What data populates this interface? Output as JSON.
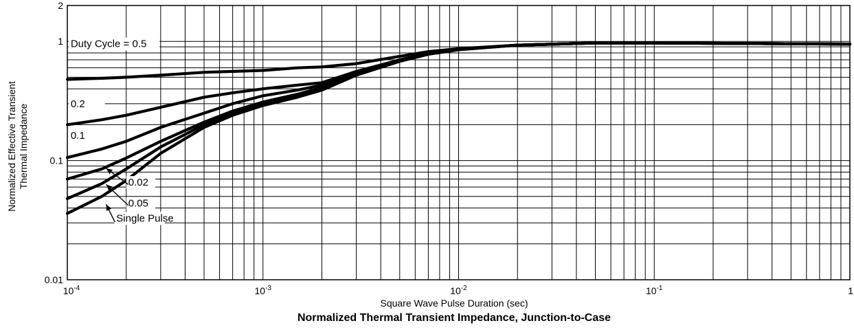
{
  "chart_data": {
    "type": "line",
    "title": "Normalized Thermal Transient Impedance, Junction-to-Case",
    "xlabel": "Square Wave Pulse Duration (sec)",
    "ylabel_lines": [
      "Normalized Effective Transient",
      "Thermal Impedance"
    ],
    "x_scale": "log",
    "y_scale": "log",
    "xlim": [
      0.0001,
      1
    ],
    "ylim": [
      0.01,
      2
    ],
    "grid": true,
    "x_ticks": [
      {
        "value": 0.0001,
        "base": "10",
        "exp": "-4"
      },
      {
        "value": 0.001,
        "base": "10",
        "exp": "-3"
      },
      {
        "value": 0.01,
        "base": "10",
        "exp": "-2"
      },
      {
        "value": 0.1,
        "base": "10",
        "exp": "-1"
      },
      {
        "value": 1,
        "base": "1",
        "exp": ""
      }
    ],
    "y_ticks": [
      {
        "value": 0.01,
        "label": "0.01"
      },
      {
        "value": 0.1,
        "label": "0.1"
      },
      {
        "value": 1,
        "label": "1"
      },
      {
        "value": 2,
        "label": "2"
      }
    ],
    "series": [
      {
        "name": "Duty Cycle = 0.5",
        "points": [
          [
            0.0001,
            0.48
          ],
          [
            0.00015,
            0.49
          ],
          [
            0.0002,
            0.5
          ],
          [
            0.0003,
            0.52
          ],
          [
            0.0005,
            0.55
          ],
          [
            0.0007,
            0.56
          ],
          [
            0.001,
            0.57
          ],
          [
            0.0015,
            0.6
          ],
          [
            0.002,
            0.61
          ],
          [
            0.003,
            0.65
          ],
          [
            0.005,
            0.75
          ],
          [
            0.007,
            0.82
          ],
          [
            0.01,
            0.87
          ],
          [
            0.02,
            0.93
          ],
          [
            0.05,
            0.97
          ],
          [
            0.1,
            0.97
          ],
          [
            0.3,
            0.96
          ],
          [
            1,
            0.95
          ]
        ]
      },
      {
        "name": "0.2",
        "points": [
          [
            0.0001,
            0.2
          ],
          [
            0.00015,
            0.22
          ],
          [
            0.0002,
            0.24
          ],
          [
            0.0003,
            0.28
          ],
          [
            0.0005,
            0.34
          ],
          [
            0.0007,
            0.37
          ],
          [
            0.001,
            0.4
          ],
          [
            0.0015,
            0.43
          ],
          [
            0.002,
            0.45
          ],
          [
            0.003,
            0.56
          ],
          [
            0.005,
            0.7
          ],
          [
            0.007,
            0.8
          ],
          [
            0.01,
            0.86
          ],
          [
            0.02,
            0.93
          ],
          [
            0.05,
            0.97
          ],
          [
            0.1,
            0.97
          ],
          [
            0.3,
            0.96
          ],
          [
            1,
            0.95
          ]
        ]
      },
      {
        "name": "0.1",
        "points": [
          [
            0.0001,
            0.106
          ],
          [
            0.00015,
            0.125
          ],
          [
            0.0002,
            0.145
          ],
          [
            0.0003,
            0.19
          ],
          [
            0.0005,
            0.25
          ],
          [
            0.0007,
            0.3
          ],
          [
            0.001,
            0.35
          ],
          [
            0.0015,
            0.39
          ],
          [
            0.002,
            0.43
          ],
          [
            0.003,
            0.55
          ],
          [
            0.005,
            0.7
          ],
          [
            0.007,
            0.79
          ],
          [
            0.01,
            0.86
          ],
          [
            0.02,
            0.93
          ],
          [
            0.05,
            0.97
          ],
          [
            0.1,
            0.97
          ],
          [
            0.3,
            0.96
          ],
          [
            1,
            0.95
          ]
        ]
      },
      {
        "name": "0.05",
        "points": [
          [
            0.0001,
            0.07
          ],
          [
            0.00015,
            0.085
          ],
          [
            0.0002,
            0.105
          ],
          [
            0.0003,
            0.145
          ],
          [
            0.0005,
            0.21
          ],
          [
            0.0007,
            0.26
          ],
          [
            0.001,
            0.31
          ],
          [
            0.0015,
            0.36
          ],
          [
            0.002,
            0.41
          ],
          [
            0.003,
            0.54
          ],
          [
            0.005,
            0.7
          ],
          [
            0.007,
            0.79
          ],
          [
            0.01,
            0.86
          ],
          [
            0.02,
            0.93
          ],
          [
            0.05,
            0.97
          ],
          [
            0.1,
            0.97
          ],
          [
            0.3,
            0.96
          ],
          [
            1,
            0.95
          ]
        ]
      },
      {
        "name": "0.02",
        "points": [
          [
            0.0001,
            0.048
          ],
          [
            0.00015,
            0.064
          ],
          [
            0.0002,
            0.085
          ],
          [
            0.0003,
            0.13
          ],
          [
            0.0005,
            0.2
          ],
          [
            0.0007,
            0.25
          ],
          [
            0.001,
            0.3
          ],
          [
            0.0015,
            0.35
          ],
          [
            0.002,
            0.4
          ],
          [
            0.003,
            0.53
          ],
          [
            0.005,
            0.69
          ],
          [
            0.007,
            0.79
          ],
          [
            0.01,
            0.86
          ],
          [
            0.02,
            0.93
          ],
          [
            0.05,
            0.97
          ],
          [
            0.1,
            0.97
          ],
          [
            0.3,
            0.96
          ],
          [
            1,
            0.95
          ]
        ]
      },
      {
        "name": "Single Pulse",
        "points": [
          [
            0.0001,
            0.036
          ],
          [
            0.00015,
            0.05
          ],
          [
            0.0002,
            0.068
          ],
          [
            0.0003,
            0.115
          ],
          [
            0.0005,
            0.19
          ],
          [
            0.0007,
            0.24
          ],
          [
            0.001,
            0.29
          ],
          [
            0.0015,
            0.34
          ],
          [
            0.002,
            0.39
          ],
          [
            0.003,
            0.52
          ],
          [
            0.005,
            0.68
          ],
          [
            0.007,
            0.78
          ],
          [
            0.01,
            0.85
          ],
          [
            0.02,
            0.93
          ],
          [
            0.05,
            0.97
          ],
          [
            0.1,
            0.97
          ],
          [
            0.3,
            0.96
          ],
          [
            1,
            0.95
          ]
        ]
      }
    ],
    "curve_labels": [
      {
        "text": "Duty Cycle = 0.5",
        "x": 0.000104,
        "y": 0.895,
        "w": 0.000185
      },
      {
        "text": "0.2",
        "x": 0.000104,
        "y": 0.28,
        "w": 4.8e-05
      },
      {
        "text": "0.1",
        "x": 0.000104,
        "y": 0.152,
        "w": 4.8e-05
      },
      {
        "text": "0.02",
        "x": 0.000205,
        "y": 0.0615,
        "w": 7e-05
      },
      {
        "text": "0.05",
        "x": 0.000205,
        "y": 0.041,
        "w": 7e-05
      },
      {
        "text": "Single Pulse",
        "x": 0.000178,
        "y": 0.0308,
        "w": 0.00013
      }
    ],
    "arrows": [
      {
        "from": [
          0.000205,
          0.063
        ],
        "to": [
          0.000158,
          0.086
        ]
      },
      {
        "from": [
          0.000205,
          0.042
        ],
        "to": [
          0.000158,
          0.063
        ]
      },
      {
        "from": [
          0.000175,
          0.0305
        ],
        "to": [
          0.000158,
          0.043
        ]
      }
    ]
  }
}
